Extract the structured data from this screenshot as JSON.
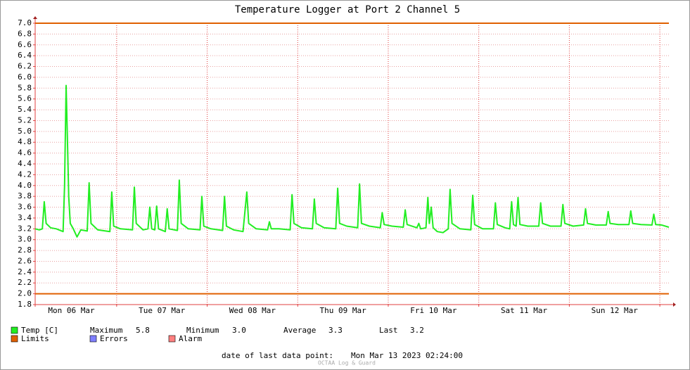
{
  "chart_data": {
    "type": "line",
    "title": "Temperature Logger at Port 2 Channel 5",
    "xlim": [
      2.4,
      170.4
    ],
    "xticks": [
      {
        "value": 12,
        "label": "Mon 06 Mar"
      },
      {
        "value": 36,
        "label": "Tue 07 Mar"
      },
      {
        "value": 60,
        "label": "Wed 08 Mar"
      },
      {
        "value": 84,
        "label": "Thu 09 Mar"
      },
      {
        "value": 108,
        "label": "Fri 10 Mar"
      },
      {
        "value": 132,
        "label": "Sat 11 Mar"
      },
      {
        "value": 156,
        "label": "Sun 12 Mar"
      }
    ],
    "xgrid": [
      24,
      48,
      72,
      96,
      120,
      144,
      168
    ],
    "ylim": [
      1.8,
      7.0
    ],
    "yticks": [
      1.8,
      {
        "value": 2,
        "label": "2.0"
      },
      2.2,
      2.4,
      2.6,
      2.8,
      {
        "value": 3,
        "label": "3.0"
      },
      3.2,
      3.4,
      3.6,
      3.8,
      {
        "value": 4,
        "label": "4.0"
      },
      4.2,
      4.4,
      4.6,
      4.8,
      {
        "value": 5,
        "label": "5.0"
      },
      5.2,
      5.4,
      5.6,
      5.8,
      {
        "value": 6,
        "label": "6.0"
      },
      6.2,
      6.4,
      6.6,
      6.8,
      {
        "value": 7,
        "label": "7.0"
      }
    ],
    "limits": [
      2,
      7
    ],
    "limits_color": "#e06000",
    "grid": true,
    "series": [
      {
        "name": "Temp [C]",
        "color": "#22ee22",
        "x": [
          2.4,
          3.5,
          4.3,
          4.8,
          5.3,
          6.5,
          8,
          9.8,
          10.2,
          10.6,
          10.9,
          11.3,
          11.7,
          12.5,
          13.5,
          14.5,
          16.2,
          16.7,
          17.2,
          19,
          22.2,
          22.7,
          23.2,
          25,
          28.2,
          28.7,
          29.2,
          31,
          32.3,
          32.8,
          33.3,
          34.1,
          34.6,
          35.1,
          36.9,
          37.4,
          37.9,
          40.1,
          40.6,
          41.1,
          43,
          46.1,
          46.6,
          47.1,
          49,
          52.1,
          52.6,
          53.1,
          55,
          57.5,
          58.5,
          59,
          61,
          64,
          64.5,
          65,
          67,
          70,
          70.5,
          71,
          73,
          75.9,
          76.4,
          76.9,
          79,
          82.1,
          82.6,
          83.1,
          85,
          87.9,
          88.4,
          88.9,
          91,
          93.9,
          94.4,
          94.9,
          97,
          100,
          100.5,
          101,
          103.6,
          104.1,
          104.6,
          106,
          106.5,
          106.9,
          107.4,
          107.9,
          109,
          110.5,
          111.9,
          112.4,
          112.9,
          115,
          117.9,
          118.4,
          118.9,
          121,
          123.9,
          124.4,
          124.9,
          127,
          128.2,
          128.7,
          129.2,
          129.9,
          130.4,
          130.9,
          133,
          135.9,
          136.4,
          136.9,
          139,
          141.8,
          142.3,
          142.8,
          145,
          147.8,
          148.3,
          148.8,
          151,
          153.8,
          154.3,
          154.8,
          157,
          159.8,
          160.3,
          160.8,
          163,
          165.9,
          166.4,
          166.9,
          168.5,
          170.4
        ],
        "values": [
          3.2,
          3.18,
          3.2,
          3.7,
          3.3,
          3.22,
          3.2,
          3.15,
          4.0,
          5.85,
          5.0,
          3.8,
          3.3,
          3.2,
          3.05,
          3.18,
          3.16,
          4.05,
          3.3,
          3.18,
          3.15,
          3.88,
          3.25,
          3.2,
          3.18,
          3.97,
          3.3,
          3.18,
          3.2,
          3.6,
          3.2,
          3.18,
          3.62,
          3.2,
          3.15,
          3.57,
          3.2,
          3.17,
          4.1,
          3.3,
          3.2,
          3.18,
          3.8,
          3.25,
          3.2,
          3.17,
          3.8,
          3.25,
          3.18,
          3.15,
          3.88,
          3.3,
          3.2,
          3.18,
          3.33,
          3.2,
          3.2,
          3.18,
          3.83,
          3.3,
          3.22,
          3.2,
          3.75,
          3.3,
          3.22,
          3.2,
          3.95,
          3.3,
          3.25,
          3.22,
          4.03,
          3.3,
          3.25,
          3.22,
          3.5,
          3.28,
          3.25,
          3.23,
          3.55,
          3.28,
          3.22,
          3.3,
          3.2,
          3.22,
          3.78,
          3.3,
          3.6,
          3.22,
          3.15,
          3.13,
          3.2,
          3.93,
          3.3,
          3.2,
          3.18,
          3.82,
          3.28,
          3.2,
          3.2,
          3.68,
          3.28,
          3.22,
          3.2,
          3.7,
          3.28,
          3.25,
          3.78,
          3.28,
          3.25,
          3.25,
          3.68,
          3.3,
          3.25,
          3.25,
          3.65,
          3.3,
          3.25,
          3.27,
          3.57,
          3.3,
          3.27,
          3.27,
          3.52,
          3.3,
          3.28,
          3.28,
          3.53,
          3.3,
          3.28,
          3.27,
          3.47,
          3.28,
          3.27,
          3.23
        ]
      }
    ],
    "stats": [
      {
        "name": "Maximum",
        "text": "5.8"
      },
      {
        "name": "Minimum",
        "text": "3.0"
      },
      {
        "name": "Average",
        "text": "3.3"
      },
      {
        "name": "Last",
        "text": "3.2"
      }
    ],
    "legend": [
      {
        "name": "Limits",
        "color": "#e06000"
      },
      {
        "name": "Errors",
        "color": "#7f7fff"
      },
      {
        "name": "Alarm",
        "color": "#ff7f7f"
      }
    ],
    "footer_label": "date of last data point:",
    "footer_value": "Mon Mar 13 2023 02:24:00",
    "watermark": "OCTAA Log & Guard"
  }
}
